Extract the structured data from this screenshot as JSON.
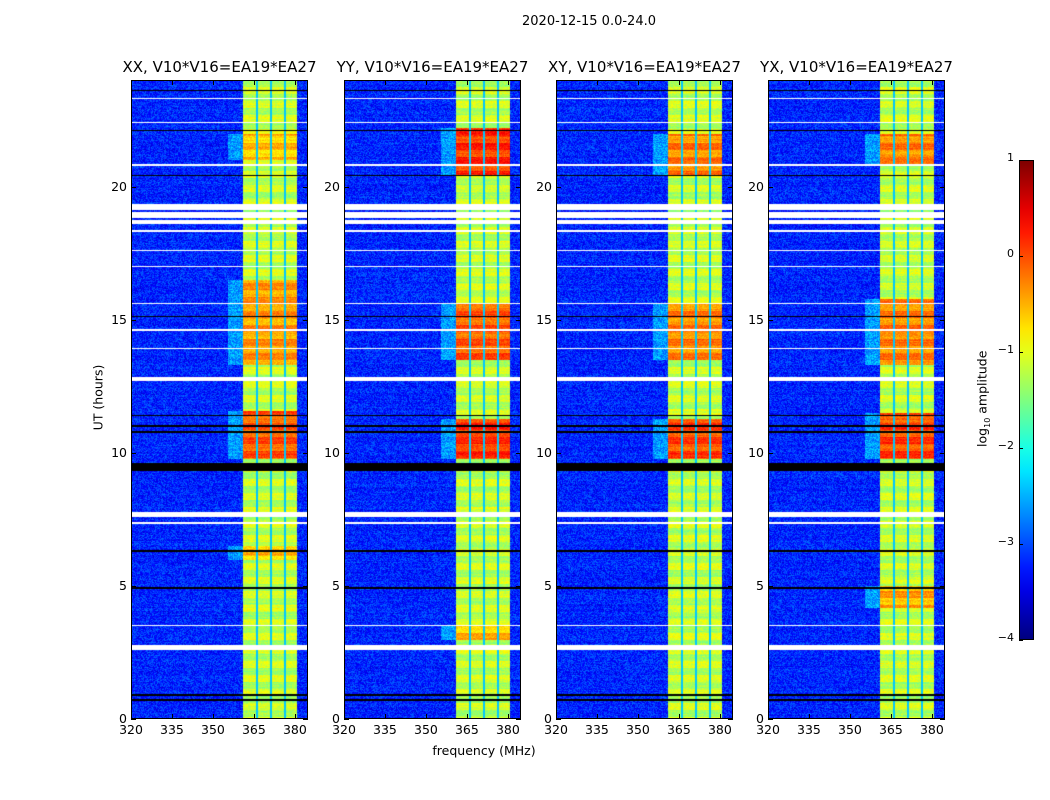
{
  "chart_data": {
    "type": "heatmap",
    "title": "2020-12-15 0.0-24.0",
    "xlabel": "frequency (MHz)",
    "ylabel": "UT (hours)",
    "xlim": [
      320,
      384.8
    ],
    "ylim": [
      0,
      24
    ],
    "xticks": [
      "320",
      "335",
      "350",
      "365",
      "380"
    ],
    "xtick_values": [
      320,
      335,
      350,
      365,
      380
    ],
    "yticks": [
      "0",
      "5",
      "10",
      "15",
      "20"
    ],
    "ytick_values": [
      0,
      5,
      10,
      15,
      20
    ],
    "colorbar": {
      "label_main": "log",
      "label_sub": "10",
      "label_rest": " amplitude",
      "colormap": "jet",
      "range": [
        -4,
        1
      ],
      "ticks": [
        "1",
        "0",
        "−1",
        "−2",
        "−3",
        "−4"
      ],
      "tick_values": [
        1,
        0,
        -1,
        -2,
        -3,
        -4
      ]
    },
    "background_level": -3.2,
    "band_mhz": [
      361,
      380.5
    ],
    "subband_edges_mhz": [
      365.8,
      370.9,
      376.1
    ],
    "flagged_white_hours": [
      [
        2.6,
        2.8
      ],
      [
        3.5,
        3.55
      ],
      [
        7.6,
        7.8
      ],
      [
        7.35,
        7.4
      ],
      [
        12.7,
        12.85
      ],
      [
        13.9,
        13.95
      ],
      [
        14.6,
        14.65
      ],
      [
        15.6,
        15.65
      ],
      [
        17.0,
        17.05
      ],
      [
        17.6,
        17.65
      ],
      [
        18.3,
        18.4
      ],
      [
        18.6,
        18.75
      ],
      [
        18.85,
        19.05
      ],
      [
        19.15,
        19.35
      ],
      [
        20.8,
        20.85
      ],
      [
        22.4,
        22.45
      ],
      [
        23.3,
        23.35
      ]
    ],
    "flagged_black_hours": [
      [
        0.7,
        0.78
      ],
      [
        0.9,
        0.96
      ],
      [
        4.9,
        4.96
      ],
      [
        6.3,
        6.36
      ],
      [
        9.35,
        9.65
      ],
      [
        10.75,
        10.82
      ],
      [
        11.0,
        11.06
      ],
      [
        11.4,
        11.45
      ],
      [
        15.1,
        15.15
      ],
      [
        20.4,
        20.46
      ],
      [
        22.1,
        22.15
      ],
      [
        23.6,
        23.65
      ]
    ],
    "panels": [
      {
        "title": "XX, V10*V16=EA19*EA27",
        "hot_hours": [
          [
            9.8,
            11.6,
            -0.1
          ],
          [
            13.3,
            16.5,
            -0.4
          ],
          [
            21,
            22,
            -0.6
          ],
          [
            6,
            6.5,
            -0.6
          ]
        ]
      },
      {
        "title": "YY, V10*V16=EA19*EA27",
        "hot_hours": [
          [
            9.8,
            11.3,
            0.1
          ],
          [
            13.5,
            15.6,
            -0.1
          ],
          [
            20.4,
            22.2,
            0.1
          ],
          [
            3,
            3.5,
            -0.6
          ]
        ]
      },
      {
        "title": "XY, V10*V16=EA19*EA27",
        "hot_hours": [
          [
            9.8,
            11.3,
            0.0
          ],
          [
            13.5,
            15.6,
            -0.3
          ],
          [
            20.4,
            22,
            -0.3
          ]
        ]
      },
      {
        "title": "YX, V10*V16=EA19*EA27",
        "hot_hours": [
          [
            9.8,
            11.5,
            0.0
          ],
          [
            13.3,
            15.8,
            -0.3
          ],
          [
            20.8,
            22,
            -0.3
          ],
          [
            4.2,
            5,
            -0.5
          ]
        ]
      }
    ]
  }
}
